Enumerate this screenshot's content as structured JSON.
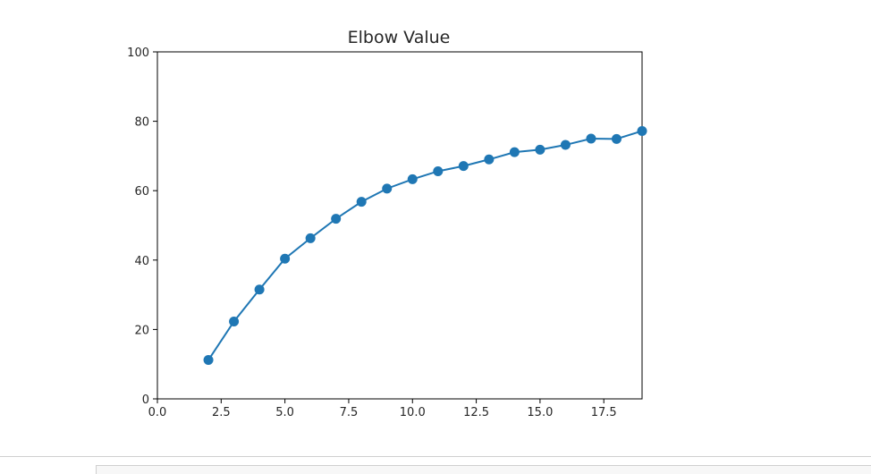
{
  "chart_data": {
    "type": "line",
    "title": "Elbow Value",
    "xlabel": "",
    "ylabel": "",
    "xlim": [
      0,
      19
    ],
    "ylim": [
      0,
      100
    ],
    "xticks": [
      "0.0",
      "2.5",
      "5.0",
      "7.5",
      "10.0",
      "12.5",
      "15.0",
      "17.5"
    ],
    "yticks": [
      "0",
      "20",
      "40",
      "60",
      "80",
      "100"
    ],
    "grid": false,
    "marker": "circle",
    "color": "#1f77b4",
    "series": [
      {
        "x": [
          2,
          3,
          4,
          5,
          6,
          7,
          8,
          9,
          10,
          11,
          12,
          13,
          14,
          15,
          16,
          17,
          18,
          19
        ],
        "y": [
          11.2,
          22.3,
          31.5,
          40.4,
          46.3,
          51.9,
          56.8,
          60.6,
          63.3,
          65.6,
          67.1,
          69.0,
          71.1,
          71.8,
          73.2,
          75.0,
          74.9,
          77.2
        ]
      }
    ]
  }
}
